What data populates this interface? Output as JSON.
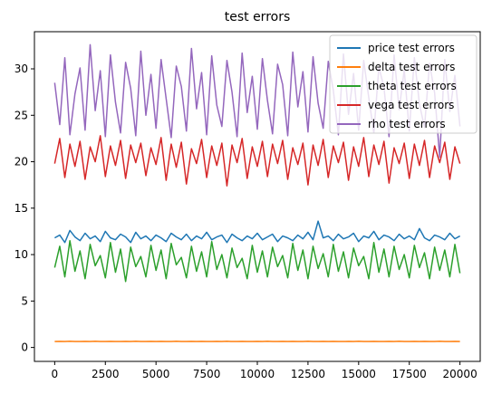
{
  "chart_data": {
    "type": "line",
    "title": "test errors",
    "xlabel": "",
    "ylabel": "",
    "xlim": [
      -1000,
      21000
    ],
    "ylim": [
      -1.5,
      34
    ],
    "x_ticks": [
      0,
      2500,
      5000,
      7500,
      10000,
      12500,
      15000,
      17500,
      20000
    ],
    "x_tick_labels": [
      "0",
      "2500",
      "5000",
      "7500",
      "10000",
      "12500",
      "15000",
      "17500",
      "20000"
    ],
    "y_ticks": [
      0,
      5,
      10,
      15,
      20,
      25,
      30
    ],
    "y_tick_labels": [
      "0",
      "5",
      "10",
      "15",
      "20",
      "25",
      "30"
    ],
    "grid": false,
    "legend_position": "top-right",
    "x": [
      0,
      250,
      500,
      750,
      1000,
      1250,
      1500,
      1750,
      2000,
      2250,
      2500,
      2750,
      3000,
      3250,
      3500,
      3750,
      4000,
      4250,
      4500,
      4750,
      5000,
      5250,
      5500,
      5750,
      6000,
      6250,
      6500,
      6750,
      7000,
      7250,
      7500,
      7750,
      8000,
      8250,
      8500,
      8750,
      9000,
      9250,
      9500,
      9750,
      10000,
      10250,
      10500,
      10750,
      11000,
      11250,
      11500,
      11750,
      12000,
      12250,
      12500,
      12750,
      13000,
      13250,
      13500,
      13750,
      14000,
      14250,
      14500,
      14750,
      15000,
      15250,
      15500,
      15750,
      16000,
      16250,
      16500,
      16750,
      17000,
      17250,
      17500,
      17750,
      18000,
      18250,
      18500,
      18750,
      19000,
      19250,
      19500,
      19750,
      20000
    ],
    "series": [
      {
        "name": "price test errors",
        "color": "#1f77b4",
        "values": [
          11.8,
          12.1,
          11.3,
          12.6,
          11.9,
          11.5,
          12.3,
          11.7,
          12.0,
          11.4,
          12.5,
          11.8,
          11.6,
          12.2,
          11.9,
          11.3,
          12.4,
          11.7,
          12.0,
          11.5,
          12.1,
          11.8,
          11.4,
          12.3,
          11.9,
          11.6,
          12.2,
          11.5,
          12.0,
          11.7,
          12.4,
          11.6,
          11.9,
          12.1,
          11.3,
          12.2,
          11.8,
          11.5,
          12.0,
          11.7,
          12.3,
          11.6,
          11.9,
          12.2,
          11.4,
          12.0,
          11.8,
          11.5,
          12.1,
          11.7,
          12.4,
          11.6,
          13.6,
          11.8,
          12.0,
          11.5,
          12.2,
          11.7,
          11.9,
          12.3,
          11.4,
          12.0,
          11.8,
          12.5,
          11.6,
          12.1,
          11.9,
          11.5,
          12.2,
          11.7,
          12.0,
          11.6,
          12.8,
          11.8,
          11.5,
          12.1,
          11.9,
          11.6,
          12.3,
          11.7,
          12.0
        ]
      },
      {
        "name": "delta test errors",
        "color": "#ff7f0e",
        "values": [
          0.65,
          0.66,
          0.64,
          0.67,
          0.65,
          0.64,
          0.66,
          0.65,
          0.67,
          0.64,
          0.65,
          0.66,
          0.65,
          0.64,
          0.66,
          0.65,
          0.67,
          0.65,
          0.64,
          0.66,
          0.65,
          0.66,
          0.64,
          0.65,
          0.67,
          0.65,
          0.64,
          0.66,
          0.65,
          0.66,
          0.65,
          0.64,
          0.66,
          0.65,
          0.67,
          0.64,
          0.65,
          0.66,
          0.65,
          0.64,
          0.66,
          0.65,
          0.67,
          0.65,
          0.64,
          0.66,
          0.65,
          0.66,
          0.64,
          0.65,
          0.67,
          0.65,
          0.64,
          0.66,
          0.65,
          0.66,
          0.65,
          0.64,
          0.66,
          0.65,
          0.67,
          0.64,
          0.65,
          0.66,
          0.65,
          0.64,
          0.66,
          0.65,
          0.67,
          0.65,
          0.64,
          0.66,
          0.65,
          0.66,
          0.64,
          0.65,
          0.67,
          0.65,
          0.64,
          0.66,
          0.65
        ]
      },
      {
        "name": "theta test errors",
        "color": "#2ca02c",
        "values": [
          8.6,
          10.9,
          7.6,
          11.5,
          8.2,
          10.4,
          7.4,
          11.1,
          8.8,
          9.9,
          7.5,
          11.3,
          8.1,
          10.6,
          7.1,
          10.8,
          8.7,
          9.8,
          7.6,
          11.0,
          8.3,
          10.5,
          7.4,
          11.2,
          8.9,
          9.7,
          7.5,
          10.9,
          8.2,
          10.3,
          7.6,
          11.4,
          8.4,
          10.0,
          7.5,
          10.7,
          8.6,
          9.6,
          7.4,
          11.0,
          8.1,
          10.4,
          7.6,
          10.8,
          8.7,
          9.9,
          7.5,
          11.2,
          8.3,
          10.5,
          7.4,
          10.9,
          8.5,
          10.1,
          7.6,
          11.1,
          8.2,
          10.3,
          7.5,
          10.7,
          8.8,
          9.8,
          7.4,
          11.3,
          8.1,
          10.6,
          7.6,
          10.9,
          8.4,
          10.0,
          7.5,
          11.0,
          8.6,
          10.2,
          7.4,
          10.8,
          8.3,
          10.5,
          7.6,
          11.1,
          8.0
        ]
      },
      {
        "name": "vega test errors",
        "color": "#d62728",
        "values": [
          19.8,
          22.5,
          18.3,
          21.9,
          19.5,
          22.2,
          18.1,
          21.6,
          20.0,
          22.8,
          18.4,
          21.7,
          19.6,
          22.3,
          18.2,
          21.8,
          19.9,
          22.0,
          18.5,
          21.5,
          19.7,
          22.6,
          18.0,
          21.9,
          19.4,
          22.1,
          17.6,
          21.4,
          19.8,
          22.4,
          18.3,
          21.7,
          19.6,
          22.0,
          17.4,
          21.8,
          19.9,
          22.5,
          18.2,
          21.6,
          19.5,
          22.2,
          18.4,
          21.9,
          19.8,
          22.3,
          18.1,
          21.5,
          19.7,
          22.0,
          17.5,
          21.8,
          19.6,
          22.4,
          18.3,
          21.7,
          19.9,
          22.1,
          18.0,
          21.6,
          19.5,
          22.6,
          18.4,
          21.8,
          19.7,
          22.2,
          17.7,
          21.5,
          19.8,
          22.0,
          18.2,
          21.9,
          19.6,
          22.3,
          18.3,
          21.7,
          19.9,
          22.1,
          18.1,
          21.6,
          19.8
        ]
      },
      {
        "name": "rho test errors",
        "color": "#9467bd",
        "values": [
          28.5,
          24.0,
          31.2,
          22.9,
          27.3,
          30.1,
          23.4,
          32.6,
          25.5,
          29.8,
          22.7,
          31.5,
          26.4,
          23.1,
          30.7,
          27.9,
          22.8,
          31.9,
          25.0,
          29.4,
          23.6,
          31.0,
          26.8,
          22.6,
          30.3,
          28.1,
          23.3,
          32.2,
          25.7,
          29.6,
          22.9,
          31.4,
          26.1,
          23.8,
          30.9,
          27.5,
          22.7,
          31.7,
          25.3,
          29.2,
          23.5,
          31.1,
          26.6,
          23.0,
          30.5,
          28.3,
          22.8,
          31.8,
          25.9,
          29.7,
          23.2,
          31.3,
          26.3,
          23.6,
          30.8,
          27.7,
          22.9,
          31.6,
          25.1,
          29.5,
          23.4,
          30.9,
          26.9,
          23.1,
          30.2,
          28.0,
          22.7,
          31.5,
          25.6,
          29.9,
          23.3,
          31.2,
          26.2,
          23.7,
          30.6,
          27.4,
          20.5,
          31.0,
          25.4,
          29.3,
          23.8
        ]
      }
    ]
  }
}
